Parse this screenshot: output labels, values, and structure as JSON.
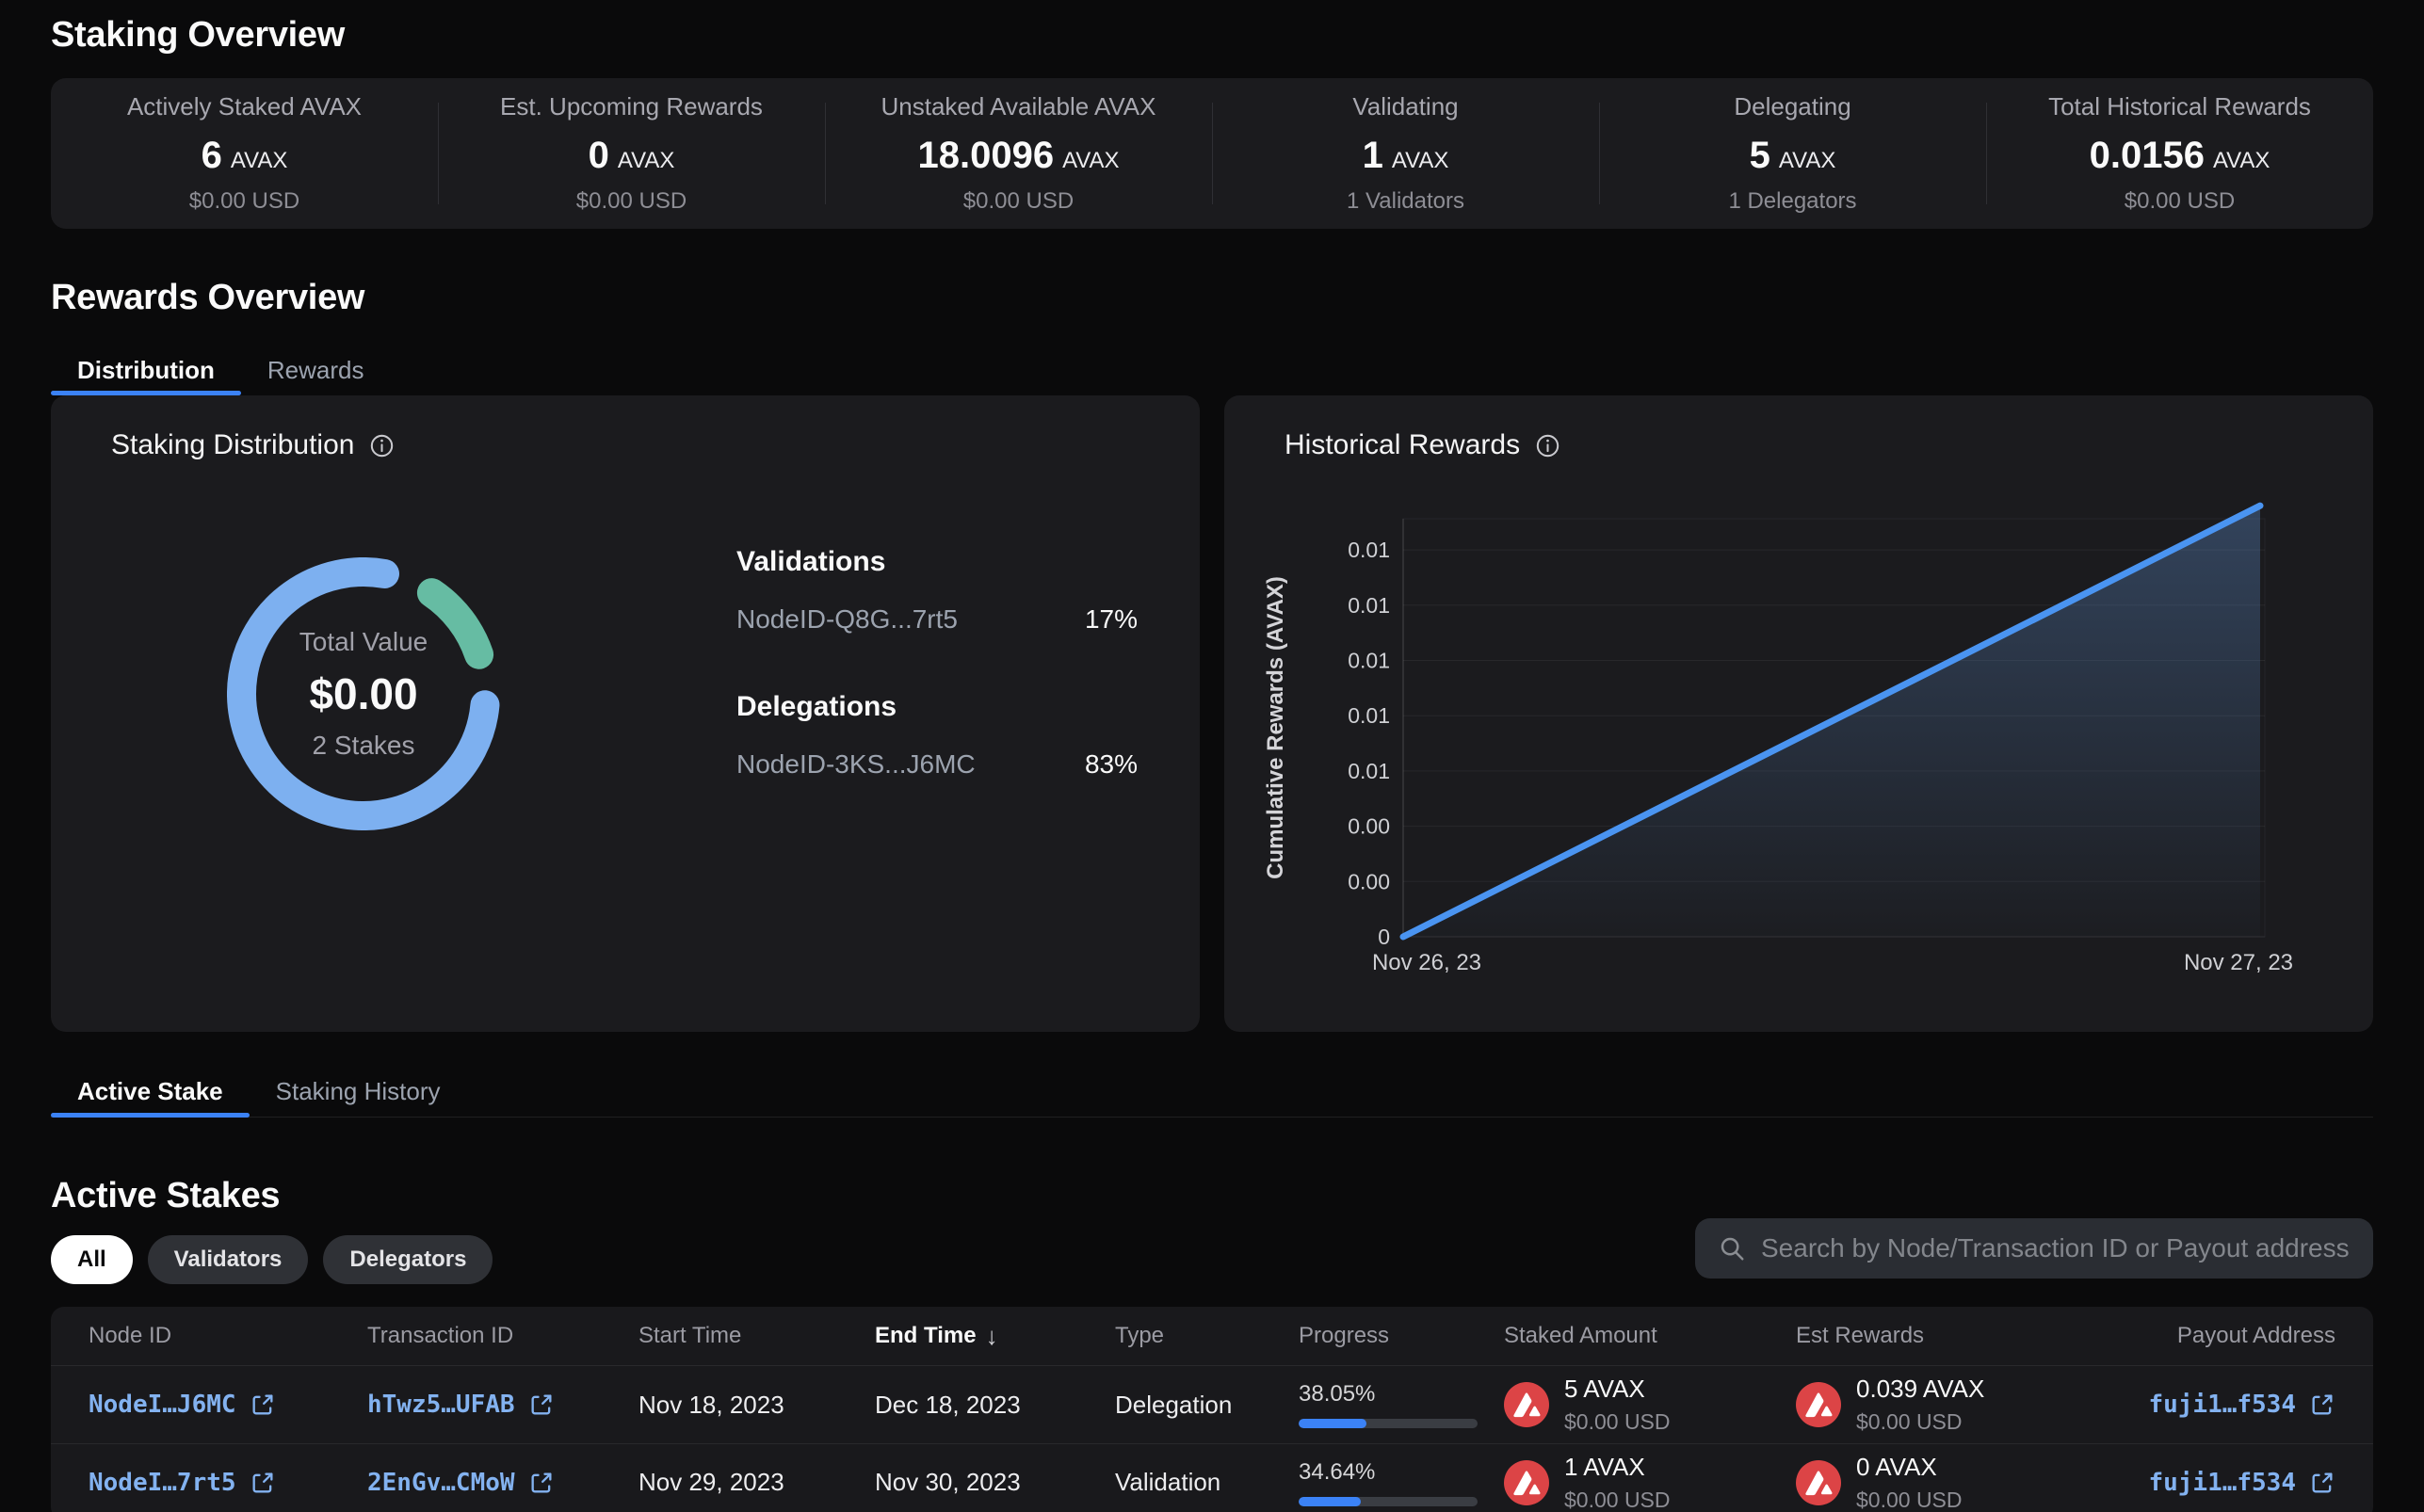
{
  "colors": {
    "accent_blue": "#3b82f6",
    "link_blue": "#83b2f0",
    "donut_blue": "#7db0f0",
    "donut_green": "#66bca3",
    "line_blue": "#4a94f1",
    "avax_red": "#dc4446",
    "card_bg": "#1b1b1e",
    "page_bg": "#0a0a0b"
  },
  "staking_overview": {
    "title": "Staking Overview",
    "stats": [
      {
        "label": "Actively Staked AVAX",
        "value": "6",
        "unit": "AVAX",
        "sub": "$0.00 USD"
      },
      {
        "label": "Est. Upcoming Rewards",
        "value": "0",
        "unit": "AVAX",
        "sub": "$0.00 USD"
      },
      {
        "label": "Unstaked Available AVAX",
        "value": "18.0096",
        "unit": "AVAX",
        "sub": "$0.00 USD"
      },
      {
        "label": "Validating",
        "value": "1",
        "unit": "AVAX",
        "sub": "1 Validators"
      },
      {
        "label": "Delegating",
        "value": "5",
        "unit": "AVAX",
        "sub": "1 Delegators"
      },
      {
        "label": "Total Historical Rewards",
        "value": "0.0156",
        "unit": "AVAX",
        "sub": "$0.00 USD"
      }
    ]
  },
  "rewards_overview": {
    "title": "Rewards Overview",
    "tabs": [
      {
        "label": "Distribution",
        "active": true
      },
      {
        "label": "Rewards",
        "active": false
      }
    ]
  },
  "distribution_panel": {
    "title": "Staking Distribution",
    "center": {
      "label": "Total Value",
      "value": "$0.00",
      "sub": "2 Stakes"
    },
    "legend": [
      {
        "group": "Validations",
        "node": "NodeID-Q8G...7rt5",
        "pct": "17%"
      },
      {
        "group": "Delegations",
        "node": "NodeID-3KS...J6MC",
        "pct": "83%"
      }
    ]
  },
  "historical_panel": {
    "title": "Historical Rewards"
  },
  "chart_data": [
    {
      "type": "pie",
      "title": "Staking Distribution",
      "series": [
        {
          "name": "NodeID-Q8G...7rt5",
          "group": "Validations",
          "value": 17,
          "color": "#66bca3"
        },
        {
          "name": "NodeID-3KS...J6MC",
          "group": "Delegations",
          "value": 83,
          "color": "#7db0f0"
        }
      ],
      "center_label": "Total Value",
      "center_value": "$0.00",
      "center_sub": "2 Stakes",
      "donut": true
    },
    {
      "type": "line",
      "title": "Historical Rewards",
      "x": [
        "Nov 26, 23",
        "Nov 27, 23"
      ],
      "series": [
        {
          "name": "Cumulative Rewards",
          "values": [
            0,
            0.0156
          ]
        }
      ],
      "ylabel": "Cumulative Rewards (AVAX)",
      "ytick_labels": [
        "0",
        "0.00",
        "0.00",
        "0.01",
        "0.01",
        "0.01",
        "0.01",
        "0.01"
      ],
      "ytick_step": 0.002,
      "ylim": [
        0,
        0.0157
      ],
      "grid": true,
      "legend_position": "none",
      "line_color": "#4a94f1"
    }
  ],
  "stake_tabs": [
    {
      "label": "Active Stake",
      "active": true
    },
    {
      "label": "Staking History",
      "active": false
    }
  ],
  "active_stakes": {
    "title": "Active Stakes",
    "filters": [
      {
        "label": "All",
        "active": true
      },
      {
        "label": "Validators",
        "active": false
      },
      {
        "label": "Delegators",
        "active": false
      }
    ],
    "search_placeholder": "Search by Node/Transaction ID or Payout address",
    "sort_icon": "↓",
    "columns": [
      {
        "label": "Node ID"
      },
      {
        "label": "Transaction ID"
      },
      {
        "label": "Start Time"
      },
      {
        "label": "End Time",
        "sorted": "desc"
      },
      {
        "label": "Type"
      },
      {
        "label": "Progress"
      },
      {
        "label": "Staked Amount"
      },
      {
        "label": "Est Rewards"
      },
      {
        "label": "Payout Address",
        "align": "right"
      }
    ],
    "rows": [
      {
        "node_id": "NodeI…J6MC",
        "tx_id": "hTwz5…UFAB",
        "start": "Nov 18, 2023",
        "end": "Dec 18, 2023",
        "type": "Delegation",
        "progress": "38.05%",
        "progress_value": 38.05,
        "staked": "5 AVAX",
        "staked_usd": "$0.00 USD",
        "rewards": "0.039 AVAX",
        "rewards_usd": "$0.00 USD",
        "payout": "fuji1…f534"
      },
      {
        "node_id": "NodeI…7rt5",
        "tx_id": "2EnGv…CMoW",
        "start": "Nov 29, 2023",
        "end": "Nov 30, 2023",
        "type": "Validation",
        "progress": "34.64%",
        "progress_value": 34.64,
        "staked": "1 AVAX",
        "staked_usd": "$0.00 USD",
        "rewards": "0 AVAX",
        "rewards_usd": "$0.00 USD",
        "payout": "fuji1…f534"
      }
    ]
  }
}
